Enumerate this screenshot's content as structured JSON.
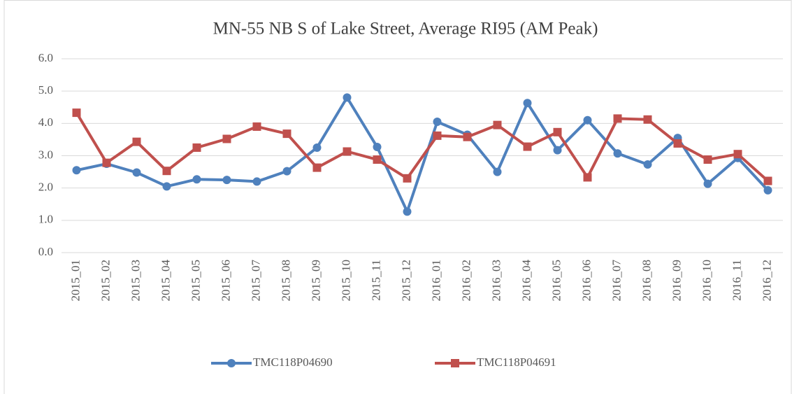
{
  "chart_data": {
    "type": "line",
    "title": "MN-55 NB S of Lake Street, Average RI95 (AM Peak)",
    "categories": [
      "2015_01",
      "2015_02",
      "2015_03",
      "2015_04",
      "2015_05",
      "2015_06",
      "2015_07",
      "2015_08",
      "2015_09",
      "2015_10",
      "2015_11",
      "2015_12",
      "2016_01",
      "2016_02",
      "2016_03",
      "2016_04",
      "2016_05",
      "2016_06",
      "2016_07",
      "2016_08",
      "2016_09",
      "2016_10",
      "2016_11",
      "2016_12"
    ],
    "series": [
      {
        "name": "TMC118P04690",
        "color": "#4f81bd",
        "marker": "circle",
        "values": [
          2.55,
          2.75,
          2.48,
          2.05,
          2.27,
          2.25,
          2.2,
          2.52,
          3.25,
          4.8,
          3.27,
          1.27,
          4.05,
          3.65,
          2.5,
          4.63,
          3.17,
          4.1,
          3.07,
          2.73,
          3.55,
          2.13,
          2.93,
          1.93
        ]
      },
      {
        "name": "TMC118P04691",
        "color": "#c0504d",
        "marker": "square",
        "values": [
          4.33,
          2.78,
          3.43,
          2.53,
          3.25,
          3.52,
          3.9,
          3.68,
          2.63,
          3.13,
          2.88,
          2.3,
          3.62,
          3.58,
          3.95,
          3.28,
          3.73,
          2.33,
          4.15,
          4.12,
          3.38,
          2.88,
          3.05,
          2.22
        ]
      }
    ],
    "ylim": [
      0,
      6
    ],
    "yticks": [
      {
        "value": 0,
        "label": "0.0"
      },
      {
        "value": 1,
        "label": "1.0"
      },
      {
        "value": 2,
        "label": "2.0"
      },
      {
        "value": 3,
        "label": "3.0"
      },
      {
        "value": 4,
        "label": "4.0"
      },
      {
        "value": 5,
        "label": "5.0"
      },
      {
        "value": 6,
        "label": "6.0"
      }
    ],
    "grid": true,
    "legend": "bottom"
  }
}
